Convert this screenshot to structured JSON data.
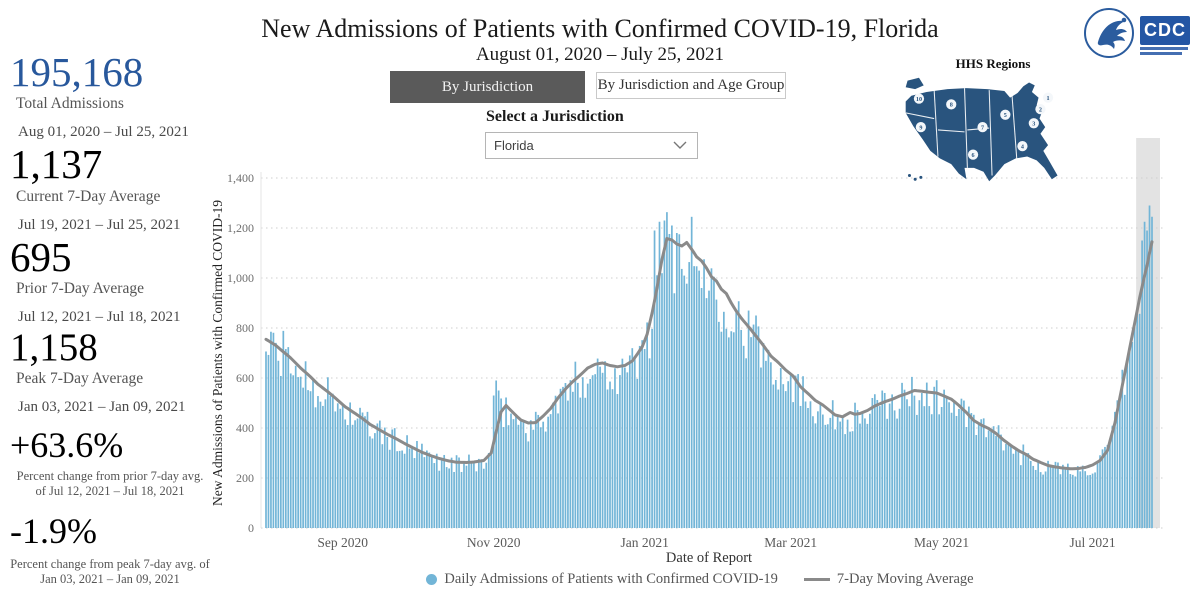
{
  "header": {
    "title": "New Admissions of Patients with Confirmed COVID-19, Florida",
    "subtitle": "August 01, 2020 – July 25, 2021"
  },
  "logos": {
    "cdc_text": "CDC"
  },
  "stats": [
    {
      "value": "195,168",
      "label": "Total Admissions",
      "range": "Aug 01, 2020 – Jul 25, 2021"
    },
    {
      "value": "1,137",
      "label": "Current 7-Day Average",
      "range": "Jul 19, 2021 – Jul 25, 2021"
    },
    {
      "value": "695",
      "label": "Prior 7-Day Average",
      "range": "Jul 12, 2021 – Jul 18, 2021"
    },
    {
      "value": "1,158",
      "label": "Peak 7-Day Average",
      "range": "Jan 03, 2021 – Jan 09, 2021"
    },
    {
      "value": "+63.6%",
      "note": "Percent change from prior 7-day avg. of Jul 12, 2021 – Jul 18, 2021"
    },
    {
      "value": "-1.9%",
      "note": "Percent change from peak 7-day avg. of Jan 03, 2021 – Jan 09, 2021"
    }
  ],
  "tabs": [
    {
      "label": "By Jurisdiction",
      "active": true
    },
    {
      "label": "By Jurisdiction and Age Group",
      "active": false
    }
  ],
  "jurisdiction": {
    "label": "Select a Jurisdiction",
    "selected": "Florida"
  },
  "map": {
    "title": "HHS Regions",
    "region_labels": [
      "1",
      "2",
      "3",
      "4",
      "5",
      "6",
      "7",
      "8",
      "9",
      "10"
    ],
    "color": "#29547e"
  },
  "chart_data": {
    "type": "bar",
    "title": "New Admissions of Patients with Confirmed COVID-19, Florida",
    "xlabel": "Date of Report",
    "ylabel": "New Admissions of Patients with Confirmed COVID-19",
    "x_start_date": "Aug 01, 2020",
    "x_end_date": "Jul 25, 2021",
    "total_days": 359,
    "ylim": [
      0,
      1400
    ],
    "y_ticks": [
      "0",
      "200",
      "400",
      "600",
      "800",
      "1,000",
      "1,200",
      "1,400"
    ],
    "x_ticks": [
      {
        "label": "Sep 2020",
        "day": 31
      },
      {
        "label": "Nov 2020",
        "day": 92
      },
      {
        "label": "Jan 2021",
        "day": 153
      },
      {
        "label": "Mar 2021",
        "day": 212
      },
      {
        "label": "May 2021",
        "day": 273
      },
      {
        "label": "Jul 2021",
        "day": 334
      }
    ],
    "legend": [
      {
        "label": "Daily Admissions of Patients with Confirmed COVID-19",
        "type": "dot",
        "color": "#72b5d7"
      },
      {
        "label": "7-Day Moving Average",
        "type": "line",
        "color": "#8a8a8a"
      }
    ],
    "grid": "dotted",
    "highlight_band_days": [
      352,
      359
    ],
    "moving_average_keypoints": [
      [
        0,
        755
      ],
      [
        4,
        730
      ],
      [
        7,
        705
      ],
      [
        10,
        680
      ],
      [
        14,
        640
      ],
      [
        18,
        605
      ],
      [
        21,
        575
      ],
      [
        25,
        545
      ],
      [
        28,
        520
      ],
      [
        32,
        485
      ],
      [
        35,
        465
      ],
      [
        39,
        438
      ],
      [
        42,
        415
      ],
      [
        46,
        392
      ],
      [
        49,
        375
      ],
      [
        53,
        355
      ],
      [
        56,
        338
      ],
      [
        60,
        318
      ],
      [
        63,
        303
      ],
      [
        67,
        288
      ],
      [
        70,
        278
      ],
      [
        74,
        268
      ],
      [
        77,
        263
      ],
      [
        81,
        262
      ],
      [
        84,
        264
      ],
      [
        88,
        270
      ],
      [
        91,
        300
      ],
      [
        93,
        385
      ],
      [
        95,
        465
      ],
      [
        97,
        490
      ],
      [
        99,
        470
      ],
      [
        101,
        450
      ],
      [
        103,
        432
      ],
      [
        106,
        420
      ],
      [
        109,
        422
      ],
      [
        112,
        448
      ],
      [
        115,
        478
      ],
      [
        118,
        520
      ],
      [
        121,
        556
      ],
      [
        124,
        586
      ],
      [
        127,
        612
      ],
      [
        130,
        640
      ],
      [
        133,
        655
      ],
      [
        136,
        660
      ],
      [
        139,
        650
      ],
      [
        142,
        645
      ],
      [
        145,
        650
      ],
      [
        148,
        668
      ],
      [
        150,
        695
      ],
      [
        152,
        725
      ],
      [
        154,
        775
      ],
      [
        156,
        860
      ],
      [
        158,
        960
      ],
      [
        160,
        1075
      ],
      [
        162,
        1158
      ],
      [
        164,
        1152
      ],
      [
        166,
        1136
      ],
      [
        168,
        1128
      ],
      [
        170,
        1142
      ],
      [
        172,
        1115
      ],
      [
        174,
        1085
      ],
      [
        176,
        1068
      ],
      [
        178,
        1040
      ],
      [
        180,
        1005
      ],
      [
        182,
        988
      ],
      [
        184,
        955
      ],
      [
        186,
        938
      ],
      [
        188,
        900
      ],
      [
        190,
        868
      ],
      [
        192,
        840
      ],
      [
        195,
        805
      ],
      [
        198,
        768
      ],
      [
        201,
        730
      ],
      [
        204,
        688
      ],
      [
        207,
        662
      ],
      [
        210,
        632
      ],
      [
        213,
        608
      ],
      [
        216,
        565
      ],
      [
        219,
        538
      ],
      [
        222,
        510
      ],
      [
        225,
        492
      ],
      [
        228,
        468
      ],
      [
        230,
        452
      ],
      [
        233,
        445
      ],
      [
        236,
        462
      ],
      [
        238,
        455
      ],
      [
        240,
        458
      ],
      [
        243,
        470
      ],
      [
        246,
        488
      ],
      [
        250,
        505
      ],
      [
        253,
        515
      ],
      [
        256,
        528
      ],
      [
        259,
        538
      ],
      [
        262,
        550
      ],
      [
        265,
        547
      ],
      [
        268,
        543
      ],
      [
        271,
        540
      ],
      [
        274,
        528
      ],
      [
        277,
        515
      ],
      [
        280,
        490
      ],
      [
        283,
        462
      ],
      [
        286,
        430
      ],
      [
        289,
        412
      ],
      [
        292,
        398
      ],
      [
        295,
        378
      ],
      [
        298,
        352
      ],
      [
        301,
        330
      ],
      [
        304,
        310
      ],
      [
        307,
        295
      ],
      [
        310,
        275
      ],
      [
        313,
        262
      ],
      [
        316,
        250
      ],
      [
        319,
        244
      ],
      [
        322,
        240
      ],
      [
        325,
        237
      ],
      [
        328,
        238
      ],
      [
        331,
        242
      ],
      [
        334,
        252
      ],
      [
        337,
        270
      ],
      [
        340,
        310
      ],
      [
        343,
        420
      ],
      [
        345,
        520
      ],
      [
        347,
        620
      ],
      [
        349,
        720
      ],
      [
        351,
        820
      ],
      [
        353,
        920
      ],
      [
        355,
        1010
      ],
      [
        356,
        1050
      ],
      [
        357,
        1100
      ],
      [
        358,
        1145
      ]
    ],
    "bar_overrides": {
      "92": 530,
      "93": 590,
      "94": 550,
      "157": 1190,
      "159": 1225,
      "161": 1230,
      "164": 1210,
      "166": 1180,
      "354": 1150,
      "355": 1225,
      "356": 1190,
      "357": 1290,
      "358": 1245
    },
    "colors": {
      "highlight_band": "#e3e3e3",
      "gridline": "#cfcfcf",
      "tick_text": "#6e6e6e"
    }
  }
}
